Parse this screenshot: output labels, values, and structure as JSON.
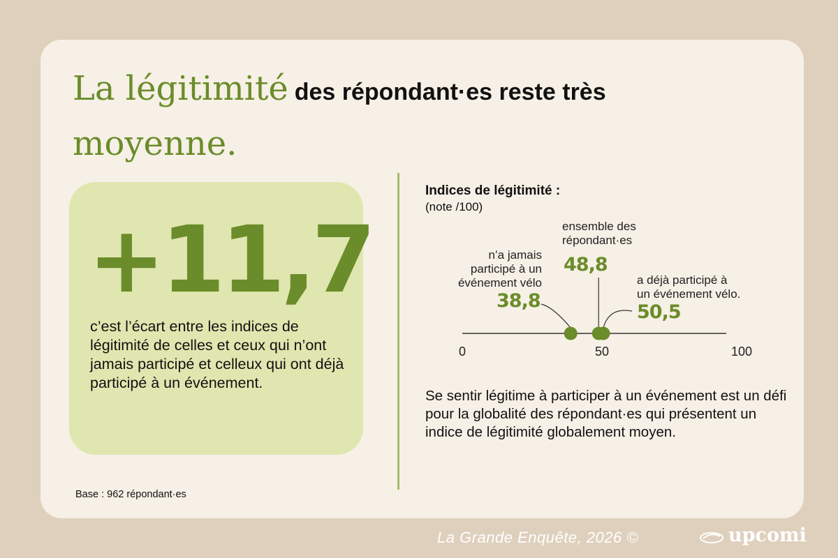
{
  "title": {
    "accent_1": "La légitimité",
    "rest": "des répondant·es reste très",
    "accent_2": "moyenne."
  },
  "stat": {
    "value": "+11,7",
    "description": "c’est l’écart entre les indices de légitimité de celles et ceux qui n’ont jamais participé et celleux qui ont déjà participé à un événement."
  },
  "base_note": "Base : 962 répondant·es",
  "chart_data": {
    "type": "scatter",
    "title": "Indices de légitimité :",
    "subtitle": "(note /100)",
    "xlim": [
      0,
      100
    ],
    "ticks": [
      "0",
      "50",
      "100"
    ],
    "tick_values": [
      0,
      50,
      100
    ],
    "points": [
      {
        "label": "n’a jamais participé à un événement vélo",
        "label_lines": [
          "n’a jamais",
          "participé à un",
          "événement vélo"
        ],
        "value": 38.8,
        "value_label": "38,8"
      },
      {
        "label": "ensemble des répondant·es",
        "label_lines": [
          "ensemble des",
          "répondant·es"
        ],
        "value": 48.8,
        "value_label": "48,8"
      },
      {
        "label": "a déjà participé à un événement vélo.",
        "label_lines": [
          "a déjà participé à",
          "un événement vélo."
        ],
        "value": 50.5,
        "value_label": "50,5"
      }
    ],
    "colors": {
      "point": "#6b8c2a",
      "axis": "#333333"
    }
  },
  "conclusion": "Se sentir légitime à participer à un événement est un défi pour la globalité des répondant·es qui présentent un indice de légitimité globalement moyen.",
  "footer": {
    "credit": "La Grande Enquête, 2026 ©",
    "brand": "upcomi",
    "brand_icon": "bike-bell-icon"
  },
  "colors": {
    "accent": "#6b8c2a",
    "card": "#f6f0e6",
    "background": "#dfd0bd",
    "stat_box": "#e0e6af"
  }
}
